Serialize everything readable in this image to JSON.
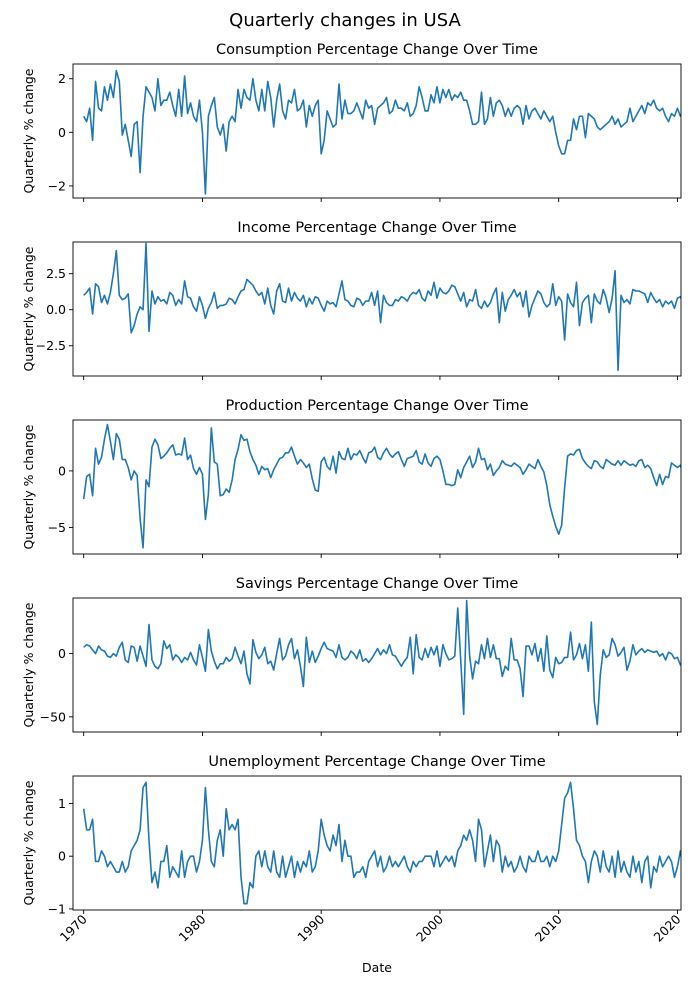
{
  "figure": {
    "title": "Quarterly changes in USA"
  },
  "chart_data": [
    {
      "type": "line",
      "title": "Consumption Percentage Change Over Time",
      "ylabel": "Quarterly % change",
      "xlabel": "",
      "xlim": [
        1969.1,
        2020.3
      ],
      "ylim": [
        -2.45,
        2.55
      ],
      "yticks": [
        -2,
        0,
        2
      ],
      "xticks": [
        1970,
        1980,
        1990,
        2000,
        2010,
        2020
      ],
      "color": "#1f77b4",
      "x_start": 1970.0,
      "x_step": 0.25,
      "values": [
        0.6,
        0.4,
        0.9,
        -0.3,
        1.9,
        0.9,
        0.8,
        1.7,
        1.2,
        1.8,
        1.3,
        2.3,
        1.9,
        -0.1,
        0.3,
        -0.3,
        -0.9,
        0.3,
        0.4,
        -1.5,
        0.6,
        1.7,
        1.5,
        1.3,
        0.8,
        2.0,
        1.0,
        1.2,
        1.2,
        1.5,
        1.0,
        0.6,
        1.6,
        0.6,
        2.1,
        0.7,
        1.1,
        0.6,
        0.4,
        1.2,
        0.0,
        -2.3,
        0.6,
        1.0,
        1.3,
        0.2,
        -0.1,
        0.3,
        -0.7,
        0.4,
        0.6,
        0.4,
        1.6,
        0.9,
        1.6,
        1.3,
        1.2,
        2.0,
        1.2,
        0.8,
        1.6,
        0.8,
        1.9,
        1.3,
        0.2,
        1.2,
        1.8,
        0.8,
        0.5,
        1.2,
        1.1,
        1.6,
        0.8,
        0.9,
        1.2,
        0.2,
        1.0,
        0.6,
        1.0,
        1.2,
        -0.8,
        -0.3,
        0.8,
        0.5,
        0.2,
        0.3,
        1.8,
        0.5,
        1.2,
        0.7,
        0.7,
        0.8,
        1.1,
        0.8,
        0.5,
        1.2,
        0.9,
        1.0,
        0.3,
        0.9,
        1.0,
        1.1,
        1.3,
        0.7,
        0.8,
        1.2,
        0.9,
        0.9,
        0.8,
        1.1,
        0.6,
        0.7,
        1.0,
        1.7,
        1.3,
        0.8,
        0.8,
        1.4,
        1.1,
        1.7,
        1.1,
        1.6,
        1.3,
        1.6,
        1.2,
        1.4,
        1.3,
        1.5,
        1.2,
        1.2,
        0.8,
        0.3,
        0.3,
        0.4,
        1.5,
        0.3,
        0.5,
        1.3,
        0.6,
        1.1,
        1.2,
        1.0,
        0.6,
        0.9,
        0.6,
        0.9,
        1.0,
        0.9,
        0.3,
        1.0,
        0.5,
        0.8,
        0.9,
        0.7,
        0.5,
        0.8,
        0.6,
        0.4,
        0.6,
        0.0,
        -0.5,
        -0.8,
        -0.8,
        -0.3,
        -0.3,
        0.5,
        0.1,
        0.6,
        0.6,
        -0.2,
        0.7,
        0.6,
        0.5,
        0.2,
        0.1,
        0.2,
        0.3,
        0.4,
        0.6,
        0.3,
        0.5,
        0.2,
        0.3,
        0.4,
        0.9,
        0.4,
        0.6,
        0.8,
        1.0,
        0.7,
        1.1,
        1.0,
        1.2,
        0.9,
        0.8,
        0.9,
        0.6,
        0.4,
        0.7,
        0.6,
        0.9,
        0.6,
        0.6,
        0.5,
        0.8,
        0.6,
        0.8,
        0.6,
        0.6,
        0.7,
        1.0,
        0.6,
        0.8,
        0.5,
        0.4,
        0.6,
        1.1
      ]
    },
    {
      "type": "line",
      "title": "Income Percentage Change Over Time",
      "ylabel": "Quarterly % change",
      "xlabel": "",
      "xlim": [
        1969.1,
        2020.3
      ],
      "ylim": [
        -4.6,
        4.7
      ],
      "yticks": [
        -2.5,
        0.0,
        2.5
      ],
      "xticks": [
        1970,
        1980,
        1990,
        2000,
        2010,
        2020
      ],
      "color": "#1f77b4",
      "x_start": 1970.0,
      "x_step": 0.25,
      "values": [
        1.0,
        1.2,
        1.5,
        -0.3,
        1.8,
        1.6,
        0.5,
        1.0,
        0.4,
        1.2,
        2.5,
        4.1,
        1.0,
        0.7,
        0.8,
        1.1,
        -1.6,
        -1.1,
        -0.3,
        0.2,
        0.0,
        4.6,
        -1.5,
        1.3,
        0.4,
        0.9,
        0.6,
        0.7,
        0.4,
        1.2,
        1.0,
        0.3,
        0.7,
        0.4,
        2.0,
        0.9,
        0.8,
        0.2,
        -0.1,
        0.9,
        0.3,
        -0.6,
        0.1,
        0.5,
        1.2,
        0.1,
        0.3,
        0.3,
        0.4,
        0.8,
        0.7,
        0.4,
        0.9,
        1.3,
        1.4,
        2.1,
        1.9,
        1.7,
        1.3,
        1.0,
        1.2,
        0.4,
        1.5,
        0.3,
        -0.3,
        1.3,
        1.8,
        0.6,
        0.5,
        1.5,
        0.6,
        1.2,
        0.8,
        0.6,
        1.0,
        0.2,
        0.8,
        0.4,
        0.9,
        0.8,
        0.3,
        -0.1,
        0.6,
        0.4,
        0.5,
        0.2,
        1.1,
        2.0,
        0.7,
        0.6,
        0.3,
        0.2,
        0.8,
        0.7,
        0.3,
        0.6,
        0.6,
        1.2,
        0.3,
        1.3,
        -0.9,
        1.0,
        0.5,
        0.3,
        0.3,
        0.7,
        0.6,
        0.9,
        0.8,
        0.6,
        1.0,
        1.2,
        1.1,
        1.4,
        0.8,
        0.6,
        1.3,
        1.0,
        1.9,
        0.8,
        1.5,
        1.2,
        1.1,
        1.3,
        1.7,
        1.6,
        1.1,
        0.6,
        1.2,
        0.2,
        0.7,
        0.6,
        1.4,
        0.3,
        0.1,
        0.6,
        0.2,
        0.5,
        1.1,
        1.5,
        -0.9,
        1.2,
        -0.1,
        0.7,
        1.0,
        1.4,
        0.9,
        1.2,
        0.2,
        1.3,
        -0.5,
        0.3,
        0.8,
        1.3,
        1.1,
        0.5,
        0.2,
        0.4,
        1.8,
        0.3,
        0.9,
        0.6,
        -2.1,
        1.1,
        0.5,
        0.2,
        1.9,
        -1.1,
        0.5,
        0.8,
        1.0,
        -0.9,
        1.1,
        0.6,
        0.4,
        1.4,
        0.8,
        -0.2,
        0.8,
        2.7,
        -4.2,
        1.0,
        0.5,
        0.7,
        0.4,
        1.4,
        1.3,
        1.3,
        1.2,
        1.1,
        0.5,
        1.2,
        0.8,
        0.5,
        0.7,
        0.2,
        0.6,
        0.4,
        0.6,
        0.1,
        0.8,
        0.9,
        0.4,
        0.6,
        0.2,
        0.6,
        0.5,
        0.1,
        0.8,
        0.9,
        0.4,
        1.2,
        0.7,
        1.1,
        0.8,
        0.5,
        0.6
      ]
    },
    {
      "type": "line",
      "title": "Production Percentage Change Over Time",
      "ylabel": "Quarterly % change",
      "xlabel": "",
      "xlim": [
        1969.1,
        2020.3
      ],
      "ylim": [
        -7.35,
        4.5
      ],
      "yticks": [
        -5,
        0
      ],
      "xticks": [
        1970,
        1980,
        1990,
        2000,
        2010,
        2020
      ],
      "color": "#1f77b4",
      "x_start": 1970.0,
      "x_step": 0.25,
      "values": [
        -2.5,
        -0.5,
        -0.3,
        -2.2,
        2.0,
        0.6,
        1.2,
        2.8,
        4.1,
        2.6,
        1.0,
        3.3,
        2.8,
        1.0,
        1.0,
        0.3,
        -0.8,
        0.0,
        -0.4,
        -4.2,
        -6.8,
        -0.8,
        -1.4,
        2.1,
        2.8,
        2.3,
        1.1,
        1.3,
        1.6,
        2.0,
        2.3,
        1.4,
        1.5,
        1.4,
        2.9,
        1.0,
        1.4,
        0.2,
        -0.3,
        0.3,
        -0.3,
        -4.3,
        -2.1,
        3.8,
        0.8,
        0.6,
        -2.2,
        -2.1,
        -1.6,
        -1.9,
        -0.8,
        1.0,
        1.9,
        3.2,
        2.7,
        2.8,
        1.7,
        1.0,
        0.5,
        -0.3,
        0.4,
        0.1,
        0.2,
        -0.6,
        0.1,
        0.6,
        1.1,
        1.2,
        1.6,
        1.6,
        2.1,
        1.3,
        0.6,
        1.0,
        0.7,
        0.3,
        0.6,
        -0.7,
        -1.7,
        -1.8,
        0.8,
        1.2,
        0.4,
        0.1,
        1.3,
        -0.2,
        1.7,
        1.1,
        1.0,
        2.0,
        1.0,
        1.5,
        1.4,
        1.8,
        1.2,
        0.7,
        1.6,
        1.7,
        2.1,
        1.2,
        1.0,
        1.6,
        2.0,
        1.5,
        1.2,
        1.5,
        1.7,
        1.0,
        0.4,
        1.1,
        1.2,
        1.3,
        1.8,
        0.8,
        0.6,
        1.5,
        0.7,
        0.4,
        1.1,
        1.3,
        1.0,
        0.0,
        -1.2,
        -1.2,
        -1.3,
        -1.2,
        0.1,
        -0.6,
        0.3,
        0.8,
        1.3,
        0.3,
        0.8,
        2.0,
        1.0,
        1.1,
        0.1,
        0.6,
        -0.4,
        0.0,
        0.3,
        0.9,
        0.6,
        0.5,
        0.4,
        0.7,
        0.5,
        0.3,
        -0.3,
        0.1,
        0.6,
        0.4,
        0.2,
        1.0,
        0.4,
        -0.1,
        -1.3,
        -3.0,
        -4.0,
        -4.9,
        -5.6,
        -4.8,
        -1.5,
        1.3,
        1.5,
        1.4,
        1.8,
        1.9,
        1.1,
        0.7,
        0.4,
        0.2,
        0.9,
        0.8,
        0.4,
        0.2,
        1.0,
        0.8,
        0.6,
        0.5,
        0.9,
        0.5,
        0.9,
        0.7,
        0.5,
        0.6,
        0.4,
        0.9,
        1.0,
        0.3,
        0.5,
        0.2,
        -0.6,
        -1.3,
        -0.3,
        -1.2,
        -0.5,
        -0.6,
        0.7,
        0.5,
        0.3,
        0.5,
        -0.4,
        0.5,
        0.8,
        1.2,
        0.6,
        0.4,
        1.4,
        0.9,
        0.7,
        1.3,
        1.0,
        1.1,
        0.8,
        -0.6,
        -0.5
      ]
    },
    {
      "type": "line",
      "title": "Savings Percentage Change Over Time",
      "ylabel": "Quarterly % change",
      "xlabel": "",
      "xlim": [
        1969.1,
        2020.3
      ],
      "ylim": [
        -62,
        44
      ],
      "yticks": [
        -50,
        0
      ],
      "xticks": [
        1970,
        1980,
        1990,
        2000,
        2010,
        2020
      ],
      "color": "#1f77b4",
      "x_start": 1970.0,
      "x_step": 0.25,
      "values": [
        5,
        7,
        6,
        3,
        0,
        6,
        3,
        2,
        -2,
        -3,
        0,
        -2,
        5,
        9,
        -5,
        -7,
        6,
        5,
        -6,
        6,
        -2,
        -10,
        23,
        -5,
        -10,
        -12,
        -8,
        10,
        4,
        7,
        -5,
        -1,
        -3,
        -7,
        -3,
        -5,
        1,
        -5,
        -9,
        7,
        -3,
        -14,
        19,
        2,
        -6,
        -12,
        -8,
        -8,
        -3,
        -6,
        -4,
        5,
        -2,
        -8,
        2,
        -16,
        -24,
        11,
        1,
        -4,
        -1,
        5,
        -8,
        -6,
        -13,
        0,
        12,
        -5,
        -2,
        7,
        12,
        -4,
        3,
        -10,
        -26,
        13,
        -7,
        2,
        -7,
        -2,
        4,
        9,
        4,
        3,
        2,
        -3,
        7,
        -3,
        -5,
        -3,
        2,
        0,
        -4,
        3,
        -6,
        -4,
        -7,
        -4,
        0,
        4,
        -1,
        3,
        0,
        7,
        -1,
        -2,
        -6,
        -10,
        -6,
        -3,
        13,
        -16,
        15,
        -3,
        -5,
        4,
        -3,
        5,
        -1,
        6,
        -10,
        7,
        0,
        -5,
        -4,
        -2,
        36,
        -5,
        -48,
        42,
        -2,
        -20,
        -6,
        -8,
        7,
        -4,
        12,
        -3,
        7,
        -4,
        -4,
        -18,
        -10,
        -13,
        12,
        -5,
        -5,
        -12,
        -34,
        6,
        6,
        -1,
        8,
        -6,
        4,
        -14,
        14,
        -13,
        -19,
        -3,
        -8,
        -7,
        -3,
        -3,
        17,
        -5,
        -1,
        8,
        -4,
        7,
        -14,
        25,
        -38,
        -56,
        -17,
        3,
        -3,
        -1,
        12,
        7,
        -2,
        1,
        5,
        -13,
        -6,
        7,
        -1,
        2,
        4,
        1,
        3,
        2,
        1,
        2,
        -2,
        0,
        -5,
        1,
        0,
        -4,
        -3,
        -9,
        -8,
        -1,
        2,
        -2,
        15,
        -2,
        -6,
        -5,
        2,
        8,
        2,
        -5
      ]
    },
    {
      "type": "line",
      "title": "Unemployment Percentage Change Over Time",
      "ylabel": "Quarterly % change",
      "xlabel": "Date",
      "xlim": [
        1969.1,
        2020.3
      ],
      "ylim": [
        -1.02,
        1.52
      ],
      "yticks": [
        -1,
        0,
        1
      ],
      "xticks": [
        1970,
        1980,
        1990,
        2000,
        2010,
        2020
      ],
      "color": "#1f77b4",
      "x_start": 1970.0,
      "x_step": 0.25,
      "values": [
        0.9,
        0.5,
        0.5,
        0.7,
        -0.1,
        -0.1,
        0.1,
        0.0,
        -0.2,
        -0.1,
        -0.2,
        -0.3,
        -0.3,
        -0.1,
        -0.3,
        -0.2,
        0.1,
        0.2,
        0.3,
        0.5,
        1.3,
        1.4,
        0.3,
        -0.5,
        -0.3,
        -0.6,
        -0.1,
        -0.1,
        0.2,
        -0.4,
        -0.2,
        -0.3,
        -0.4,
        0.1,
        -0.4,
        -0.1,
        0.0,
        0.0,
        -0.3,
        -0.1,
        0.3,
        1.3,
        0.5,
        -0.1,
        -0.2,
        0.3,
        0.5,
        0.0,
        0.9,
        0.5,
        0.6,
        0.5,
        0.7,
        -0.4,
        -0.9,
        -0.9,
        -0.5,
        -0.6,
        0.0,
        0.1,
        -0.2,
        0.1,
        -0.2,
        -0.3,
        0.1,
        -0.3,
        -0.4,
        0.0,
        -0.4,
        -0.2,
        0.0,
        -0.4,
        -0.1,
        -0.3,
        -0.1,
        -0.2,
        0.1,
        -0.3,
        -0.2,
        0.1,
        0.7,
        0.4,
        0.2,
        0.1,
        0.4,
        0.2,
        0.6,
        -0.1,
        0.3,
        0.0,
        0.0,
        -0.4,
        -0.3,
        -0.3,
        -0.2,
        -0.4,
        -0.1,
        0.0,
        0.1,
        -0.2,
        0.0,
        -0.3,
        -0.2,
        0.0,
        -0.2,
        -0.1,
        -0.2,
        -0.1,
        0.0,
        -0.2,
        -0.3,
        -0.1,
        -0.2,
        -0.1,
        -0.1,
        0.0,
        0.0,
        0.0,
        -0.2,
        0.1,
        -0.2,
        -0.1,
        0.0,
        -0.1,
        0.0,
        -0.2,
        0.1,
        0.2,
        0.4,
        0.3,
        0.5,
        0.3,
        -0.1,
        0.7,
        0.5,
        -0.2,
        0.1,
        0.4,
        -0.1,
        0.3,
        0.2,
        -0.3,
        0.0,
        -0.2,
        -0.1,
        -0.3,
        -0.2,
        0.0,
        -0.2,
        -0.3,
        0.0,
        -0.1,
        -0.1,
        0.1,
        -0.1,
        -0.1,
        0.0,
        -0.2,
        0.0,
        -0.1,
        0.1,
        0.6,
        1.1,
        1.2,
        1.4,
        0.9,
        0.3,
        0.2,
        0.0,
        -0.1,
        -0.5,
        -0.1,
        0.1,
        0.0,
        -0.3,
        0.1,
        -0.2,
        -0.3,
        0.0,
        -0.4,
        0.1,
        -0.3,
        -0.1,
        -0.3,
        -0.4,
        0.0,
        -0.3,
        -0.1,
        -0.5,
        -0.1,
        0.0,
        -0.6,
        -0.2,
        -0.3,
        0.0,
        -0.2,
        -0.1,
        0.0,
        -0.1,
        -0.4,
        -0.2,
        0.1,
        -0.3,
        -0.3,
        -0.1,
        -0.1,
        -0.1,
        -0.2,
        -0.2,
        0.2,
        -0.3,
        0.0,
        -0.1,
        -0.1
      ]
    }
  ]
}
